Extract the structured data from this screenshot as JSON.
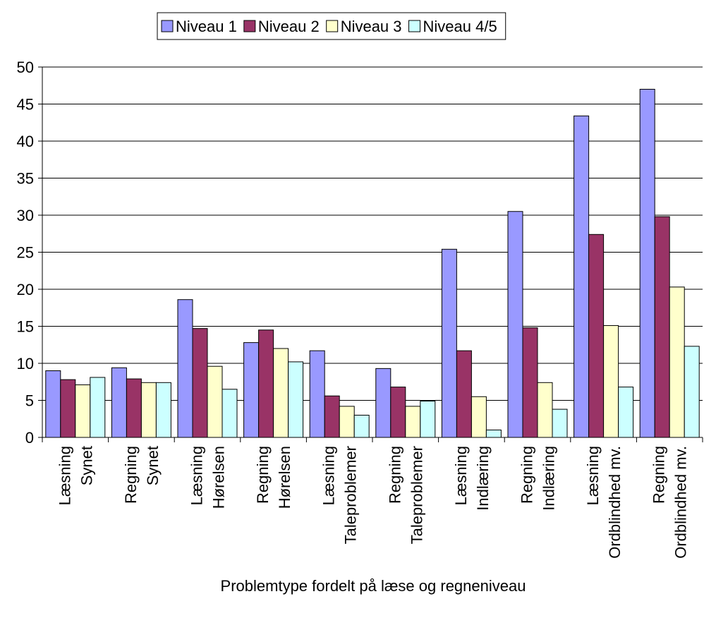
{
  "chart_data": {
    "type": "bar",
    "title": "",
    "xlabel": "Problemtype fordelt på læse og regneniveau",
    "ylabel": "",
    "ylim": [
      0,
      50
    ],
    "yticks": [
      0,
      5,
      10,
      15,
      20,
      25,
      30,
      35,
      40,
      45,
      50
    ],
    "grid": true,
    "legend_position": "top",
    "categories": [
      [
        "Læsning",
        "Synet"
      ],
      [
        "Regning",
        "Synet"
      ],
      [
        "Læsning",
        "Hørelsen"
      ],
      [
        "Regning",
        "Hørelsen"
      ],
      [
        "Læsning",
        "Taleproblemer"
      ],
      [
        "Regning",
        "Taleproblemer"
      ],
      [
        "Læsning",
        "Indlæring"
      ],
      [
        "Regning",
        "Indlæring"
      ],
      [
        "Læsning",
        "Ordblindhed mv."
      ],
      [
        "Regning",
        "Ordblindhed mv."
      ]
    ],
    "series": [
      {
        "name": "Niveau 1",
        "color": "#9999ff",
        "values": [
          9.0,
          9.4,
          18.6,
          12.8,
          11.7,
          9.3,
          25.4,
          30.5,
          43.4,
          47.0
        ]
      },
      {
        "name": "Niveau 2",
        "color": "#993366",
        "values": [
          7.8,
          7.9,
          14.7,
          14.5,
          5.6,
          6.8,
          11.7,
          14.8,
          27.4,
          29.8
        ]
      },
      {
        "name": "Niveau 3",
        "color": "#ffffcc",
        "values": [
          7.1,
          7.4,
          9.6,
          12.0,
          4.2,
          4.2,
          5.5,
          7.4,
          15.1,
          20.3
        ]
      },
      {
        "name": "Niveau 4/5",
        "color": "#ccffff",
        "values": [
          8.1,
          7.4,
          6.5,
          10.2,
          3.0,
          4.9,
          1.0,
          3.8,
          6.8,
          12.3
        ]
      }
    ]
  }
}
